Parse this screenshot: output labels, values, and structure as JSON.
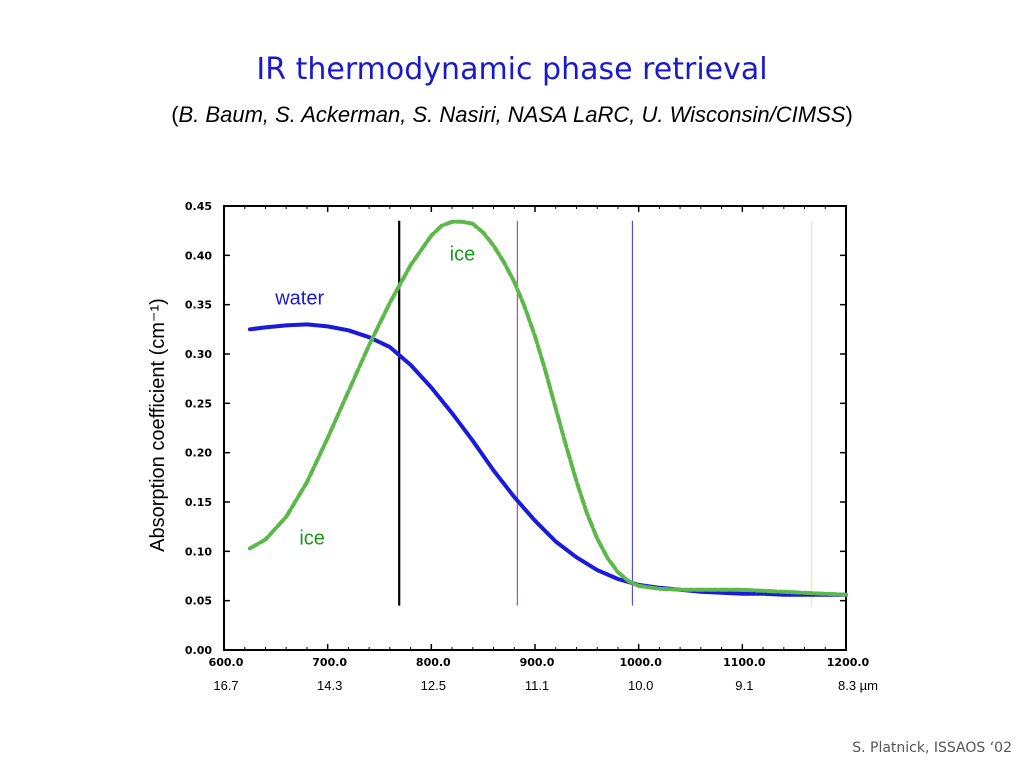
{
  "slide": {
    "title": "IR thermodynamic phase retrieval",
    "subtitle_open": "(",
    "subtitle_authors": "B. Baum, S. Ackerman, S. Nasiri, NASA LaRC, U. Wisconsin/CIMSS",
    "subtitle_close": ")",
    "credit": "S. Platnick, ISSAOS ‘02",
    "title_color": "#1a1acc"
  },
  "chart_data": {
    "type": "line",
    "title": "",
    "xlabel": "",
    "ylabel": "Absorption coefficient (cm⁻¹)",
    "xlim": [
      600,
      1200
    ],
    "ylim": [
      0,
      0.45
    ],
    "x_ticks": [
      {
        "value": 600,
        "label": "600.0"
      },
      {
        "value": 700,
        "label": "700.0"
      },
      {
        "value": 800,
        "label": "800.0"
      },
      {
        "value": 900,
        "label": "900.0"
      },
      {
        "value": 1000,
        "label": "1000.0"
      },
      {
        "value": 1100,
        "label": "1100.0"
      },
      {
        "value": 1200,
        "label": "1200.0"
      }
    ],
    "y_ticks": [
      {
        "value": 0,
        "label": "0.00"
      },
      {
        "value": 0.05,
        "label": "0.05"
      },
      {
        "value": 0.1,
        "label": "0.10"
      },
      {
        "value": 0.15,
        "label": "0.15"
      },
      {
        "value": 0.2,
        "label": "0.20"
      },
      {
        "value": 0.25,
        "label": "0.25"
      },
      {
        "value": 0.3,
        "label": "0.30"
      },
      {
        "value": 0.35,
        "label": "0.35"
      },
      {
        "value": 0.4,
        "label": "0.40"
      },
      {
        "value": 0.45,
        "label": "0.45"
      }
    ],
    "wavelength_ticks": [
      {
        "value": 600,
        "label": "16.7"
      },
      {
        "value": 700,
        "label": "14.3"
      },
      {
        "value": 800,
        "label": "12.5"
      },
      {
        "value": 900,
        "label": "11.1"
      },
      {
        "value": 1000,
        "label": "10.0"
      },
      {
        "value": 1100,
        "label": "9.1"
      },
      {
        "value": 1200,
        "label": "8.3 µm"
      }
    ],
    "series": [
      {
        "name": "water",
        "color": "#1a1add",
        "style": "solid",
        "x": [
          625,
          640,
          660,
          680,
          700,
          720,
          740,
          760,
          780,
          800,
          820,
          840,
          860,
          880,
          900,
          920,
          940,
          960,
          980,
          1000,
          1020,
          1040,
          1060,
          1080,
          1100,
          1120,
          1140,
          1160,
          1180,
          1200
        ],
        "y": [
          0.325,
          0.327,
          0.329,
          0.33,
          0.328,
          0.324,
          0.317,
          0.307,
          0.289,
          0.266,
          0.24,
          0.212,
          0.182,
          0.155,
          0.131,
          0.11,
          0.094,
          0.081,
          0.072,
          0.066,
          0.063,
          0.061,
          0.059,
          0.058,
          0.057,
          0.057,
          0.056,
          0.056,
          0.056,
          0.056
        ]
      },
      {
        "name": "ice",
        "color": "#5cb84a",
        "style": "dashed",
        "x": [
          625,
          640,
          660,
          680,
          700,
          720,
          740,
          760,
          780,
          800,
          810,
          820,
          830,
          840,
          850,
          860,
          870,
          880,
          890,
          900,
          910,
          920,
          930,
          940,
          950,
          960,
          970,
          980,
          990,
          1000,
          1020,
          1040,
          1060,
          1080,
          1100,
          1120,
          1140,
          1160,
          1180,
          1200
        ],
        "y": [
          0.103,
          0.112,
          0.135,
          0.17,
          0.215,
          0.262,
          0.309,
          0.352,
          0.39,
          0.42,
          0.43,
          0.434,
          0.434,
          0.432,
          0.423,
          0.41,
          0.393,
          0.373,
          0.348,
          0.318,
          0.283,
          0.245,
          0.207,
          0.171,
          0.139,
          0.113,
          0.093,
          0.079,
          0.07,
          0.065,
          0.062,
          0.061,
          0.061,
          0.061,
          0.061,
          0.06,
          0.059,
          0.058,
          0.057,
          0.056
        ]
      }
    ],
    "vertical_lines": [
      {
        "x": 769,
        "color": "#000000"
      },
      {
        "x": 883,
        "color": "#c040c0"
      },
      {
        "x": 994,
        "color": "#5050c8"
      },
      {
        "x": 1167,
        "color": "#d8ecb0"
      }
    ],
    "vline_top": 0.435,
    "vline_bottom": 0.045,
    "annotations": [
      {
        "text": "water",
        "x": 673,
        "y": 0.35,
        "color": "#1a1add"
      },
      {
        "text": "ice",
        "x": 830,
        "y": 0.395,
        "color": "#1a9a1a"
      },
      {
        "text": "ice",
        "x": 685,
        "y": 0.107,
        "color": "#1a9a1a"
      }
    ],
    "grid": false,
    "legend": "none"
  }
}
